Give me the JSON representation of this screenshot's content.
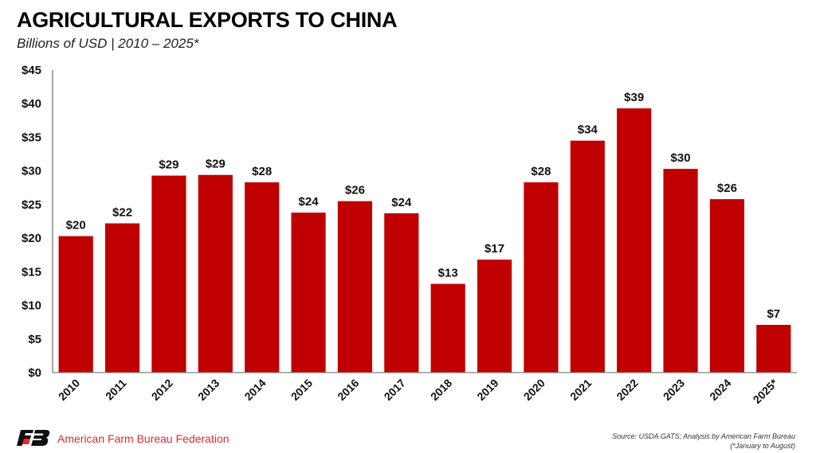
{
  "header": {
    "title": "AGRICULTURAL EXPORTS TO CHINA",
    "subtitle": "Billions of USD | 2010 – 2025*"
  },
  "footer": {
    "organization": "American Farm Bureau Federation",
    "logo_icon": "afbf-logo-icon",
    "source": "Source: USDA GATS; Analysis by American Farm Bureau",
    "note": "(*January to August)"
  },
  "colors": {
    "bar": "#c00000",
    "axis": "#a6a6a6",
    "brand": "#e2282c"
  },
  "chart_data": {
    "type": "bar",
    "title": "AGRICULTURAL EXPORTS TO CHINA",
    "subtitle": "Billions of USD | 2010 – 2025*",
    "xlabel": "",
    "ylabel": "",
    "ylim": [
      0,
      45
    ],
    "yticks": [
      0,
      5,
      10,
      15,
      20,
      25,
      30,
      35,
      40,
      45
    ],
    "ytick_labels": [
      "$0",
      "$5",
      "$10",
      "$15",
      "$20",
      "$25",
      "$30",
      "$35",
      "$40",
      "$45"
    ],
    "grid": false,
    "legend": "none",
    "categories": [
      "2010",
      "2011",
      "2012",
      "2013",
      "2014",
      "2015",
      "2016",
      "2017",
      "2018",
      "2019",
      "2020",
      "2021",
      "2022",
      "2023",
      "2024",
      "2025*"
    ],
    "values": [
      20.3,
      22.2,
      29.3,
      29.4,
      28.3,
      23.8,
      25.5,
      23.7,
      13.2,
      16.8,
      28.3,
      34.5,
      39.3,
      30.3,
      25.8,
      7.1
    ],
    "data_labels": [
      "$20",
      "$22",
      "$29",
      "$29",
      "$28",
      "$24",
      "$26",
      "$24",
      "$13",
      "$17",
      "$28",
      "$34",
      "$39",
      "$30",
      "$26",
      "$7"
    ]
  }
}
